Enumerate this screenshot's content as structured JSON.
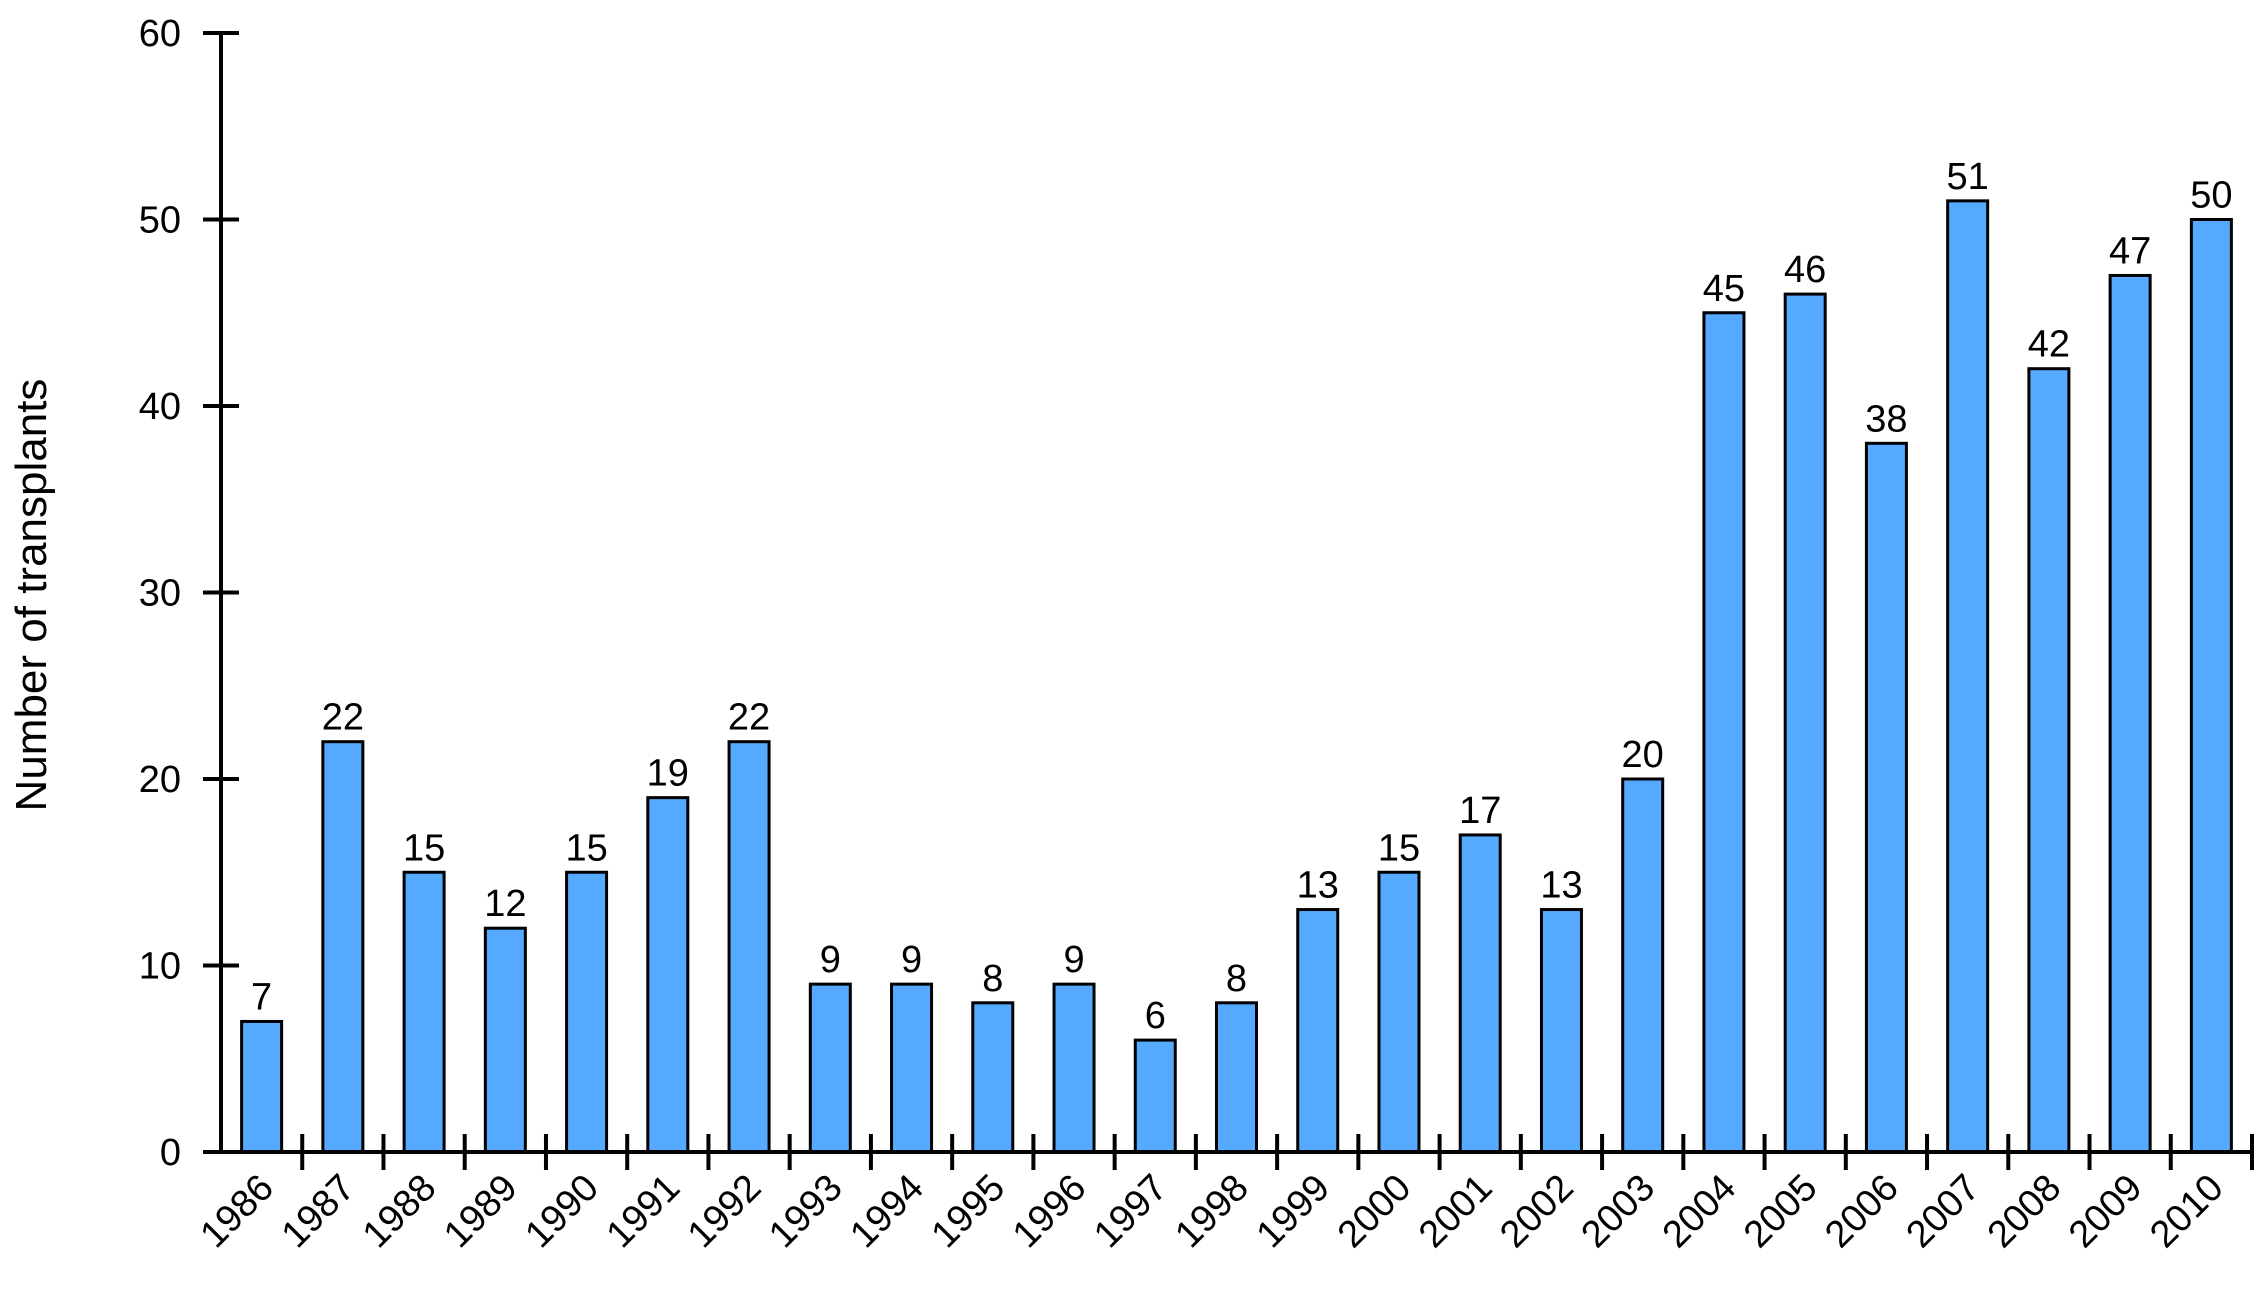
{
  "chart_data": {
    "type": "bar",
    "title": "",
    "xlabel": "",
    "ylabel": "Number of transplants",
    "ylim": [
      0,
      60
    ],
    "yticks": [
      "0",
      "10",
      "20",
      "30",
      "40",
      "50",
      "60"
    ],
    "grid": false,
    "categories": [
      "1986",
      "1987",
      "1988",
      "1989",
      "1990",
      "1991",
      "1992",
      "1993",
      "1994",
      "1995",
      "1996",
      "1997",
      "1998",
      "1999",
      "2000",
      "2001",
      "2002",
      "2003",
      "2004",
      "2005",
      "2006",
      "2007",
      "2008",
      "2009",
      "2010"
    ],
    "values": [
      7,
      22,
      15,
      12,
      15,
      19,
      22,
      9,
      9,
      8,
      9,
      6,
      8,
      13,
      15,
      17,
      13,
      20,
      45,
      46,
      38,
      51,
      42,
      47,
      50
    ],
    "bar_color": "#55aaff",
    "data_labels": true
  }
}
